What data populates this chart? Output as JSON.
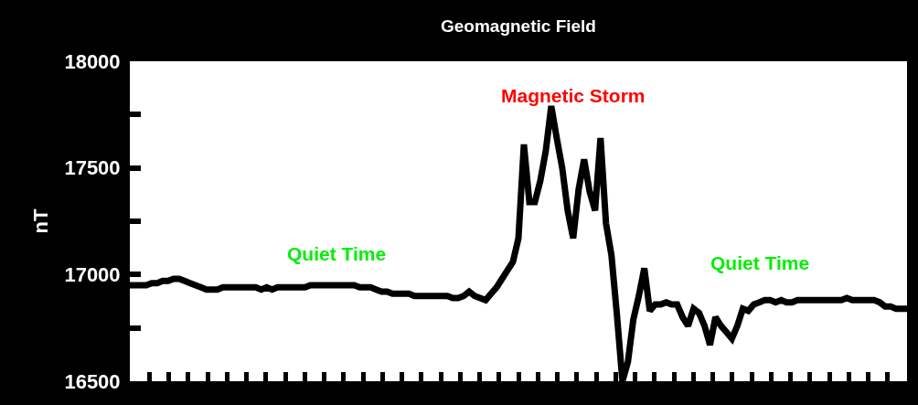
{
  "chart_data": {
    "type": "line",
    "title": "Geomagnetic Field",
    "ylabel": "nT",
    "annotations": [
      "Magnetic Storm",
      "Quiet Time",
      "Quiet Time"
    ],
    "categories": [
      null,
      null,
      null,
      null,
      null,
      null,
      null,
      null,
      null,
      null,
      null,
      null,
      null,
      null,
      null,
      null,
      null,
      null,
      null,
      null,
      null,
      null,
      null,
      null,
      null,
      null,
      null,
      null,
      null,
      null,
      null,
      null,
      null,
      null,
      null,
      null,
      null,
      null,
      null,
      null,
      null,
      null,
      null,
      null,
      null,
      null,
      null,
      null,
      null,
      null,
      null,
      null,
      null,
      null,
      null,
      null,
      null,
      null,
      null,
      null,
      null,
      null,
      null,
      null,
      null,
      null,
      null,
      null,
      null,
      null,
      null,
      null,
      null,
      null,
      null,
      null,
      null,
      null,
      null,
      null,
      null,
      null,
      null,
      null,
      null,
      null,
      null,
      null,
      null,
      null,
      null,
      null,
      null,
      null,
      null,
      null,
      null,
      null,
      null,
      null,
      null,
      null,
      null,
      null,
      null,
      null,
      null,
      null,
      null,
      null,
      null,
      null,
      null,
      null,
      null,
      null,
      null,
      null,
      null,
      null,
      null,
      null,
      null,
      null,
      null,
      null,
      null,
      null,
      null,
      null,
      null,
      null,
      null,
      null,
      null,
      null,
      null,
      null,
      null,
      null,
      null,
      null,
      null
    ],
    "series": [
      {
        "color": "#000000",
        "values": [
          16950,
          16950,
          16950,
          16950,
          16960,
          16960,
          16970,
          16970,
          16980,
          16980,
          16970,
          16960,
          16950,
          16940,
          16930,
          16930,
          16930,
          16940,
          16940,
          16940,
          16940,
          16940,
          16940,
          16940,
          16930,
          16940,
          16930,
          16940,
          16940,
          16940,
          16940,
          16940,
          16940,
          16950,
          16950,
          16950,
          16950,
          16950,
          16950,
          16950,
          16950,
          16950,
          16940,
          16940,
          16940,
          16930,
          16920,
          16920,
          16910,
          16910,
          16910,
          16910,
          16900,
          16900,
          16900,
          16900,
          16900,
          16900,
          16900,
          16890,
          16890,
          16900,
          16920,
          16900,
          16890,
          16880,
          16910,
          16940,
          16980,
          17020,
          17060,
          17170,
          17610,
          17340,
          17340,
          17440,
          17580,
          17790,
          17640,
          17500,
          17300,
          17170,
          17400,
          17540,
          17390,
          17300,
          17640,
          17240,
          17090,
          16810,
          16500,
          16590,
          16790,
          16900,
          17030,
          16830,
          16860,
          16860,
          16870,
          16860,
          16860,
          16800,
          16760,
          16840,
          16820,
          16760,
          16670,
          16800,
          16760,
          16730,
          16700,
          16760,
          16840,
          16830,
          16860,
          16870,
          16880,
          16880,
          16870,
          16880,
          16870,
          16870,
          16880,
          16880,
          16880,
          16880,
          16880,
          16880,
          16880,
          16880,
          16880,
          16890,
          16880,
          16880,
          16880,
          16880,
          16880,
          16870,
          16850,
          16850,
          16840,
          16840,
          16840
        ]
      }
    ],
    "ylim": [
      16500,
      18000
    ],
    "yticks": [
      16500,
      {
        "value": 16750,
        "label": null
      },
      17000,
      {
        "value": 17250,
        "label": null
      },
      17500,
      {
        "value": 17750,
        "label": null
      },
      18000
    ],
    "marker": "none",
    "line_style": "solid"
  }
}
